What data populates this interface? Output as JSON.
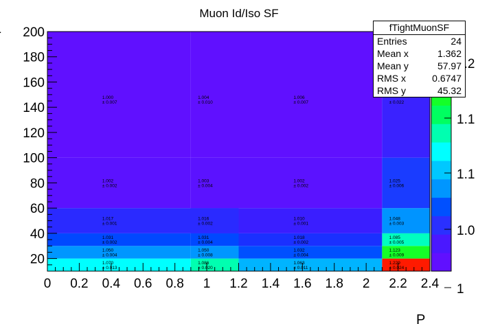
{
  "chart_data": {
    "type": "heatmap",
    "title": "Muon Id/Iso SF",
    "xlabel": "P",
    "ylabel": "",
    "xlim": [
      0,
      2.4
    ],
    "ylim": [
      10,
      200
    ],
    "x_ticks": [
      "0",
      "0.2",
      "0.4",
      "0.6",
      "0.8",
      "1",
      "1.2",
      "1.4",
      "1.6",
      "1.8",
      "2",
      "2.2",
      "2.4"
    ],
    "y_ticks": [
      "20",
      "40",
      "60",
      "80",
      "100",
      "120",
      "140",
      "160",
      "180",
      "200"
    ],
    "z_ticks": [
      "1",
      "1.0",
      "1.1",
      "1.1",
      "1.2"
    ],
    "cells": [
      {
        "x0": 0.0,
        "x1": 0.9,
        "y0": 10,
        "y1": 20,
        "value": "1.070",
        "error": "± 0.013",
        "color": "#00ffff"
      },
      {
        "x0": 0.9,
        "x1": 1.2,
        "y0": 10,
        "y1": 20,
        "value": "1.086",
        "error": "± 0.020",
        "color": "#00ffb0"
      },
      {
        "x0": 1.2,
        "x1": 2.1,
        "y0": 10,
        "y1": 20,
        "value": "1.063",
        "error": "± 0.011",
        "color": "#00b4ff"
      },
      {
        "x0": 2.1,
        "x1": 2.4,
        "y0": 10,
        "y1": 20,
        "value": "1.229",
        "error": "± 0.024",
        "color": "#ff1a00"
      },
      {
        "x0": 0.0,
        "x1": 0.9,
        "y0": 20,
        "y1": 30,
        "value": "1.050",
        "error": "± 0.004",
        "color": "#0096ff"
      },
      {
        "x0": 0.9,
        "x1": 1.2,
        "y0": 20,
        "y1": 30,
        "value": "1.050",
        "error": "± 0.008",
        "color": "#0096ff"
      },
      {
        "x0": 1.2,
        "x1": 2.1,
        "y0": 20,
        "y1": 30,
        "value": "1.032",
        "error": "± 0.004",
        "color": "#0050ff"
      },
      {
        "x0": 2.1,
        "x1": 2.4,
        "y0": 20,
        "y1": 30,
        "value": "1.123",
        "error": "± 0.009",
        "color": "#14ff28"
      },
      {
        "x0": 0.0,
        "x1": 0.9,
        "y0": 30,
        "y1": 40,
        "value": "1.031",
        "error": "± 0.002",
        "color": "#0048ff"
      },
      {
        "x0": 0.9,
        "x1": 1.2,
        "y0": 30,
        "y1": 40,
        "value": "1.031",
        "error": "± 0.004",
        "color": "#0048ff"
      },
      {
        "x0": 1.2,
        "x1": 2.1,
        "y0": 30,
        "y1": 40,
        "value": "1.018",
        "error": "± 0.002",
        "color": "#1a30ff"
      },
      {
        "x0": 2.1,
        "x1": 2.4,
        "y0": 30,
        "y1": 40,
        "value": "1.085",
        "error": "± 0.005",
        "color": "#00ffc0"
      },
      {
        "x0": 0.0,
        "x1": 1.2,
        "y0": 40,
        "y1": 60,
        "value": "1.017",
        "error": "± 0.001",
        "color": "#2a2aff"
      },
      {
        "x0": 0.9,
        "x1": 1.2,
        "y0": 40,
        "y1": 60,
        "value": "1.016",
        "error": "± 0.002",
        "color": "#2a2aff"
      },
      {
        "x0": 1.2,
        "x1": 2.1,
        "y0": 40,
        "y1": 60,
        "value": "1.010",
        "error": "± 0.001",
        "color": "#3a1eff"
      },
      {
        "x0": 2.1,
        "x1": 2.4,
        "y0": 40,
        "y1": 60,
        "value": "1.048",
        "error": "± 0.003",
        "color": "#0094ff"
      },
      {
        "x0": 0.0,
        "x1": 0.9,
        "y0": 60,
        "y1": 100,
        "value": "1.002",
        "error": "± 0.002",
        "color": "#5b12ff"
      },
      {
        "x0": 0.9,
        "x1": 1.2,
        "y0": 60,
        "y1": 100,
        "value": "1.003",
        "error": "± 0.004",
        "color": "#5b12ff"
      },
      {
        "x0": 1.2,
        "x1": 2.1,
        "y0": 60,
        "y1": 100,
        "value": "1.002",
        "error": "± 0.002",
        "color": "#5b12ff"
      },
      {
        "x0": 2.1,
        "x1": 2.4,
        "y0": 60,
        "y1": 100,
        "value": "1.025",
        "error": "± 0.006",
        "color": "#1a3cff"
      },
      {
        "x0": 0.0,
        "x1": 0.9,
        "y0": 100,
        "y1": 200,
        "value": "1.000",
        "error": "± 0.007",
        "color": "#6010ff"
      },
      {
        "x0": 0.9,
        "x1": 1.2,
        "y0": 100,
        "y1": 200,
        "value": "1.004",
        "error": "± 0.010",
        "color": "#6010ff"
      },
      {
        "x0": 1.2,
        "x1": 2.1,
        "y0": 100,
        "y1": 200,
        "value": "1.006",
        "error": "± 0.007",
        "color": "#6010ff"
      },
      {
        "x0": 2.1,
        "x1": 2.4,
        "y0": 100,
        "y1": 200,
        "value": "",
        "error": "± 0.022",
        "color": "#3a22ff"
      }
    ],
    "palette": [
      "#6010ff",
      "#4a18ff",
      "#2a30ff",
      "#0050ff",
      "#0096ff",
      "#00c8ff",
      "#00ffff",
      "#00ffb0",
      "#00ff60",
      "#14ff28",
      "#60ff00",
      "#b0ff00",
      "#e0ff00"
    ],
    "stats_box": {
      "title": "fTightMuonSF",
      "rows": [
        {
          "label": "Entries",
          "value": "24"
        },
        {
          "label": "Mean x",
          "value": "1.362"
        },
        {
          "label": "Mean y",
          "value": "57.97"
        },
        {
          "label": "RMS x",
          "value": "0.6747"
        },
        {
          "label": "RMS y",
          "value": "45.32"
        }
      ]
    }
  }
}
